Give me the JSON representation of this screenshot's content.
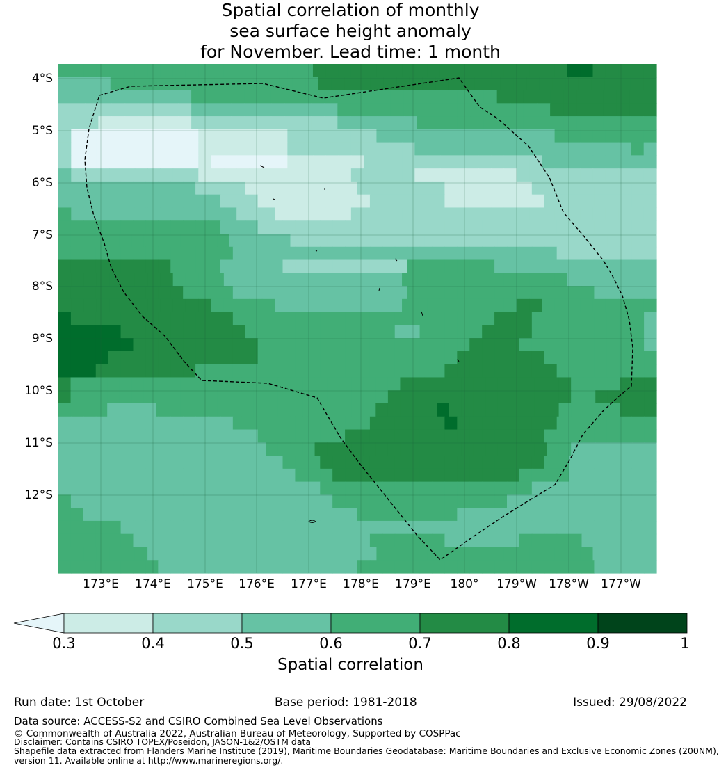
{
  "title": {
    "line1": "Spatial correlation of monthly",
    "line2": "sea surface height anomaly",
    "line3": "for November. Lead time: 1 month"
  },
  "map": {
    "lat_labels": [
      "4°S",
      "5°S",
      "6°S",
      "7°S",
      "8°S",
      "9°S",
      "10°S",
      "11°S",
      "12°S"
    ],
    "lon_labels": [
      "173°E",
      "174°E",
      "175°E",
      "176°E",
      "177°E",
      "178°E",
      "179°E",
      "180°",
      "179°W",
      "178°W",
      "177°W"
    ],
    "colors": {
      "0.3": "#ccece6",
      "0.4": "#99d8c9",
      "0.5": "#66c2a4",
      "0.6": "#41ae76",
      "0.7": "#238b45",
      "0.8": "#006d2c",
      "0.9": "#00441b",
      "below": "#e5f5f9"
    }
  },
  "colorbar": {
    "labels": [
      "0.3",
      "0.4",
      "0.5",
      "0.6",
      "0.7",
      "0.8",
      "0.9",
      "1"
    ],
    "title": "Spatial correlation"
  },
  "footer": {
    "run_date": "Run date: 1st October",
    "base_period": "Base period: 1981-2018",
    "issued": "Issued: 29/08/2022",
    "data_source": "Data source: ACCESS-S2 and CSIRO Combined Sea Level Observations",
    "copyright": "© Commonwealth of Australia 2022, Australian Bureau of Meteorology, Supported by COSPPac",
    "disclaimer": "Disclaimer: Contains CSIRO TOPEX/Poseidon, JASON-1&2/OSTM data",
    "shapefile1": "Shapefile data extracted from Flanders Marine Institute (2019), Maritime Boundaries Geodatabase: Maritime Boundaries and Exclusive Economic Zones (200NM),",
    "shapefile2": "version 11. Available online at http://www.marineregions.org/."
  }
}
